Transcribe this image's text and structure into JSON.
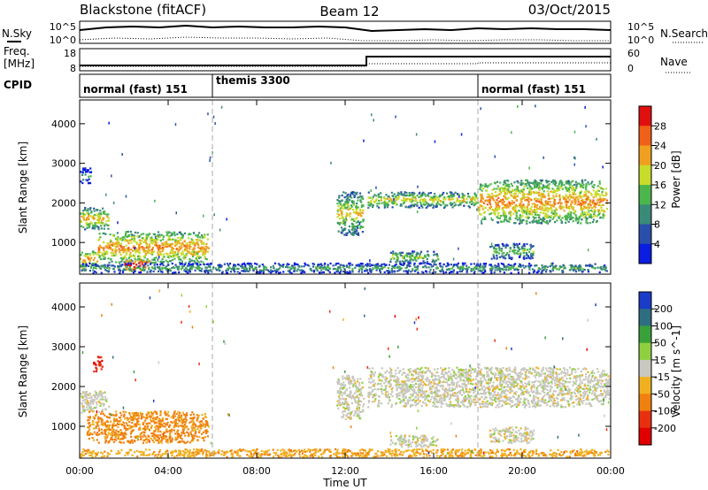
{
  "header": {
    "station": "Blackstone (fitACF)",
    "beam": "Beam 12",
    "date": "03/Oct/2015"
  },
  "noise_panel": {
    "left_label": "N.Sky",
    "right_label": "N.Search",
    "left_ticks": [
      "10^5",
      "10^0"
    ],
    "right_ticks": [
      "10^5",
      "10^0"
    ]
  },
  "freq_panel": {
    "left_label_line1": "Freq.",
    "left_label_line2": "[MHz]",
    "right_label": "Nave",
    "left_ticks": [
      "18",
      "8"
    ],
    "right_ticks": [
      "60",
      "0"
    ]
  },
  "cpid": {
    "label": "CPID",
    "segments": [
      {
        "name": "normal (fast) 151",
        "start_hour": 0
      },
      {
        "name": "themis 3300",
        "start_hour": 6
      },
      {
        "name": "normal (fast) 151",
        "start_hour": 18
      }
    ]
  },
  "power_colorbar": {
    "label": "Power [dB]",
    "ticks": [
      "4",
      "8",
      "12",
      "16",
      "20",
      "24",
      "28"
    ],
    "colors": [
      "#0b1de0",
      "#2a4faa",
      "#3a8a78",
      "#4cb54c",
      "#c8dc2a",
      "#f0a020",
      "#f06018",
      "#e01010"
    ]
  },
  "velocity_colorbar": {
    "label": "Velocity [m s^-1]",
    "ticks": [
      "200",
      "100",
      "50",
      "15",
      "-15",
      "-50",
      "-100",
      "-200"
    ],
    "colors": [
      "#1a3cc8",
      "#2f6e82",
      "#3aa03a",
      "#8fd040",
      "#c8c8c0",
      "#f0b020",
      "#f08010",
      "#e83010",
      "#e00000"
    ]
  },
  "axes": {
    "ylabel": "Slant Range [km]",
    "xlabel": "Time UT",
    "yticks": [
      "1000",
      "2000",
      "3000",
      "4000"
    ],
    "xticks": [
      "00:00",
      "04:00",
      "08:00",
      "12:00",
      "16:00",
      "20:00",
      "00:00"
    ]
  },
  "chart_data": [
    {
      "type": "heatmap",
      "title": "",
      "quantity": "Power",
      "unit": "dB",
      "xlabel": "",
      "ylabel": "Slant Range [km]",
      "xlim": [
        0,
        24
      ],
      "ylim": [
        200,
        4600
      ],
      "x_unit": "hours UT",
      "colorbar_ticks": [
        4,
        8,
        12,
        16,
        20,
        24,
        28
      ],
      "cpid_boundaries_hours": [
        6,
        18
      ],
      "regions": [
        {
          "t": [
            0.0,
            1.3
          ],
          "range": [
            1350,
            1900
          ],
          "level": 18
        },
        {
          "t": [
            0.0,
            0.8
          ],
          "range": [
            400,
            800
          ],
          "level": 20
        },
        {
          "t": [
            0.8,
            5.8
          ],
          "range": [
            500,
            1300
          ],
          "level": 20
        },
        {
          "t": [
            2.0,
            3.2
          ],
          "range": [
            300,
            600
          ],
          "level": 28
        },
        {
          "t": [
            0.0,
            24.0
          ],
          "range": [
            250,
            500
          ],
          "level": 10
        },
        {
          "t": [
            11.6,
            12.8
          ],
          "range": [
            1200,
            2300
          ],
          "level": 16
        },
        {
          "t": [
            13.0,
            18.0
          ],
          "range": [
            1900,
            2300
          ],
          "level": 16
        },
        {
          "t": [
            18.0,
            23.8
          ],
          "range": [
            1500,
            2600
          ],
          "level": 20
        },
        {
          "t": [
            14.0,
            16.2
          ],
          "range": [
            500,
            800
          ],
          "level": 14
        },
        {
          "t": [
            18.5,
            20.5
          ],
          "range": [
            600,
            1000
          ],
          "level": 12
        },
        {
          "t": [
            0.0,
            0.5
          ],
          "range": [
            2500,
            2900
          ],
          "level": 8
        }
      ]
    },
    {
      "type": "heatmap",
      "title": "",
      "quantity": "Velocity",
      "unit": "m s^-1",
      "xlabel": "Time UT",
      "ylabel": "Slant Range [km]",
      "xlim": [
        0,
        24
      ],
      "ylim": [
        200,
        4600
      ],
      "x_unit": "hours UT",
      "colorbar_ticks": [
        200,
        100,
        50,
        15,
        -15,
        -50,
        -100,
        -200
      ],
      "cpid_boundaries_hours": [
        6,
        18
      ],
      "regions": [
        {
          "t": [
            0.0,
            1.3
          ],
          "range": [
            1350,
            1900
          ],
          "level": 0
        },
        {
          "t": [
            0.3,
            5.8
          ],
          "range": [
            600,
            1400
          ],
          "level": -60
        },
        {
          "t": [
            0.0,
            24.0
          ],
          "range": [
            250,
            450
          ],
          "level": -40
        },
        {
          "t": [
            11.6,
            12.8
          ],
          "range": [
            1200,
            2300
          ],
          "level": 0
        },
        {
          "t": [
            13.0,
            24.0
          ],
          "range": [
            1500,
            2500
          ],
          "level": 0
        },
        {
          "t": [
            14.0,
            16.2
          ],
          "range": [
            500,
            800
          ],
          "level": 0
        },
        {
          "t": [
            18.5,
            20.5
          ],
          "range": [
            600,
            1000
          ],
          "level": 0
        },
        {
          "t": [
            0.6,
            1.0
          ],
          "range": [
            2400,
            2800
          ],
          "level": -200
        }
      ]
    }
  ]
}
